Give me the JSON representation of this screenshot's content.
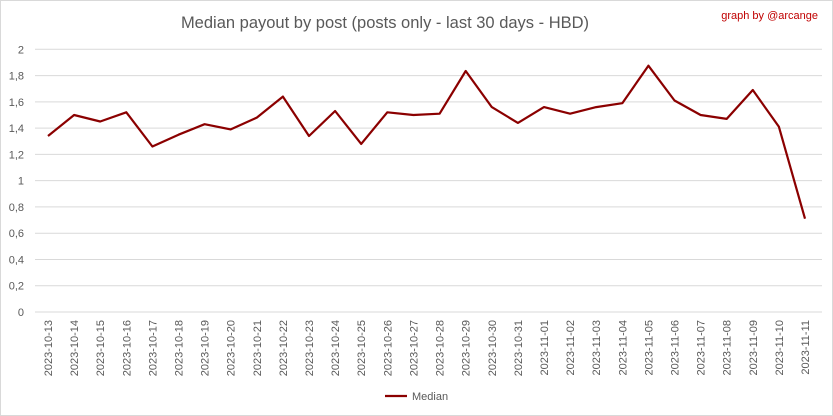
{
  "chart_data": {
    "type": "line",
    "title": "Median payout by post (posts only - last 30 days - HBD)",
    "credit": "graph by @arcange",
    "xlabel": "",
    "ylabel": "",
    "ylim": [
      0,
      2
    ],
    "yticks": [
      "0",
      "0,2",
      "0,4",
      "0,6",
      "0,8",
      "1",
      "1,2",
      "1,4",
      "1,6",
      "1,8",
      "2"
    ],
    "grid": true,
    "legend_position": "bottom",
    "categories": [
      "2023-10-13",
      "2023-10-14",
      "2023-10-15",
      "2023-10-16",
      "2023-10-17",
      "2023-10-18",
      "2023-10-19",
      "2023-10-20",
      "2023-10-21",
      "2023-10-22",
      "2023-10-23",
      "2023-10-24",
      "2023-10-25",
      "2023-10-26",
      "2023-10-27",
      "2023-10-28",
      "2023-10-29",
      "2023-10-30",
      "2023-10-31",
      "2023-11-01",
      "2023-11-02",
      "2023-11-03",
      "2023-11-04",
      "2023-11-05",
      "2023-11-06",
      "2023-11-07",
      "2023-11-08",
      "2023-11-09",
      "2023-11-10",
      "2023-11-11"
    ],
    "series": [
      {
        "name": "Median",
        "color": "#8b0000",
        "values": [
          1.34,
          1.5,
          1.45,
          1.52,
          1.26,
          1.35,
          1.43,
          1.39,
          1.48,
          1.64,
          1.34,
          1.53,
          1.28,
          1.52,
          1.5,
          1.51,
          1.835,
          1.56,
          1.44,
          1.56,
          1.51,
          1.56,
          1.59,
          1.875,
          1.61,
          1.5,
          1.47,
          1.69,
          1.41,
          0.71
        ]
      }
    ]
  }
}
